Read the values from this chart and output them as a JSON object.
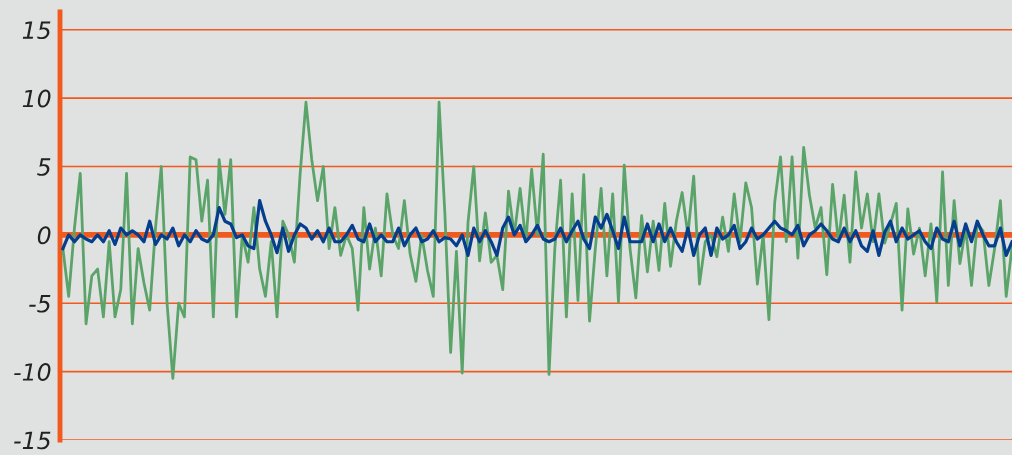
{
  "chart_data": {
    "type": "line",
    "categories": [
      null,
      null,
      null,
      null,
      null,
      null,
      null,
      null,
      null,
      null,
      null,
      null,
      null,
      null,
      null,
      null,
      null,
      null,
      null,
      null,
      null,
      null,
      null,
      null,
      null,
      null,
      null,
      null,
      null,
      null,
      null,
      null,
      null,
      null,
      null,
      null,
      null,
      null,
      null,
      null,
      null,
      null,
      null,
      null,
      null,
      null,
      null,
      null,
      null,
      null,
      null,
      null,
      null,
      null,
      null,
      null,
      null,
      null,
      null,
      null,
      null,
      null,
      null,
      null,
      null,
      null,
      null,
      null,
      null,
      null,
      null,
      null,
      null,
      null,
      null,
      null,
      null,
      null,
      null,
      null,
      null,
      null,
      null,
      null,
      null,
      null,
      null,
      null,
      null,
      null,
      null,
      null,
      null,
      null,
      null,
      null,
      null,
      null,
      null,
      null,
      null,
      null,
      null,
      null,
      null,
      null,
      null,
      null,
      null,
      null,
      null,
      null,
      null,
      null,
      null,
      null,
      null,
      null,
      null,
      null,
      null,
      null,
      null,
      null,
      null,
      null,
      null,
      null,
      null,
      null,
      null,
      null,
      null,
      null,
      null,
      null,
      null,
      null,
      null,
      null,
      null,
      null,
      null,
      null,
      null,
      null,
      null,
      null,
      null,
      null,
      null,
      null,
      null,
      null,
      null,
      null,
      null,
      null,
      null,
      null,
      null,
      null,
      null,
      null,
      null
    ],
    "series": [
      {
        "color": "#5aa469",
        "values": [
          -1,
          -4.5,
          0.5,
          4.5,
          -6.5,
          -3,
          -2.5,
          -6,
          -0.5,
          -6,
          -4,
          4.5,
          -6.5,
          -1,
          -3.5,
          -5.5,
          0.5,
          5,
          -5,
          -10.5,
          -5,
          -6,
          5.7,
          5.5,
          1,
          4,
          -6,
          5.5,
          1.5,
          5.5,
          -6,
          0,
          -2,
          2,
          -2.5,
          -4.5,
          -0.5,
          -6,
          1,
          0,
          -2,
          4.5,
          9.7,
          5.5,
          2.5,
          5,
          -1,
          2,
          -1.5,
          0,
          -1,
          -5.5,
          2,
          -2.5,
          0.5,
          -3,
          3,
          0,
          -1,
          2.5,
          -1.4,
          -3.4,
          0,
          -2.6,
          -4.5,
          9.7,
          1.6,
          -8.6,
          -1.2,
          -10.1,
          0.9,
          5,
          -1.9,
          1.6,
          -2,
          -1.5,
          -4,
          3.2,
          0,
          3.4,
          -0.5,
          4.8,
          0,
          5.9,
          -10.2,
          -1,
          4,
          -6,
          3,
          -4.8,
          4.4,
          -6.3,
          -1,
          3.4,
          -3,
          3,
          -4.9,
          5.1,
          -1,
          -4.6,
          1.4,
          -2.7,
          1,
          -2.6,
          2.3,
          -2.3,
          1,
          3.1,
          0,
          4.3,
          -3.6,
          -0.5,
          0,
          -1.6,
          1.3,
          -1.2,
          3,
          -0.5,
          3.8,
          2,
          -3.6,
          0,
          -6.2,
          2.4,
          5.7,
          -0.5,
          5.7,
          -1.7,
          6.4,
          2.9,
          0.5,
          2,
          -2.9,
          3.7,
          -0.5,
          2.9,
          -2,
          4.6,
          0.5,
          3,
          -0.5,
          3,
          -0.6,
          0.8,
          2.3,
          -5.5,
          1.9,
          -1.4,
          0.5,
          -3,
          0.8,
          -4.9,
          4.6,
          -3.7,
          2.5,
          -2.1,
          0.5,
          -3.7,
          0.8,
          0.3,
          -3.7,
          -1,
          2.5,
          -4.5,
          -0.9
        ]
      },
      {
        "color": "#053e8c",
        "values": [
          -1,
          0,
          -0.5,
          0,
          -0.3,
          -0.5,
          0,
          -0.5,
          0.3,
          -0.7,
          0.5,
          0,
          0.3,
          0,
          -0.5,
          1,
          -0.7,
          0,
          -0.3,
          0.5,
          -0.8,
          0,
          -0.5,
          0.3,
          -0.3,
          -0.5,
          0,
          2,
          1,
          0.8,
          -0.2,
          0,
          -0.8,
          -1,
          2.5,
          1,
          0,
          -1.3,
          0.5,
          -1.2,
          0,
          0.8,
          0.5,
          -0.3,
          0.3,
          -0.5,
          0.5,
          -0.5,
          -0.5,
          0,
          0.7,
          -0.3,
          -0.5,
          0.8,
          -0.5,
          0,
          -0.5,
          -0.5,
          0.5,
          -0.8,
          0,
          0.5,
          -0.5,
          -0.3,
          0.3,
          -0.5,
          -0.2,
          -0.3,
          -0.8,
          0,
          -1.5,
          0.5,
          -0.5,
          0.3,
          -0.5,
          -1.5,
          0.5,
          1.3,
          0,
          0.7,
          -0.5,
          0,
          0.7,
          -0.3,
          -0.5,
          -0.3,
          0.5,
          -0.5,
          0.3,
          1,
          -0.3,
          -1,
          1.3,
          0.5,
          1.5,
          0.3,
          -1,
          1.3,
          -0.5,
          -0.5,
          -0.5,
          0.8,
          -0.5,
          0.8,
          -0.5,
          0.5,
          -0.5,
          -1.2,
          0.5,
          -1.5,
          0,
          0.5,
          -1.5,
          0.5,
          -0.3,
          0,
          0.7,
          -1,
          -0.5,
          0.5,
          -0.3,
          0,
          0.5,
          1,
          0.5,
          0.3,
          0,
          0.7,
          -0.8,
          0,
          0.3,
          0.8,
          0.3,
          -0.3,
          -0.5,
          0.5,
          -0.5,
          0.3,
          -0.8,
          -1.2,
          0.3,
          -1.5,
          0.2,
          1,
          -0.5,
          0.5,
          -0.3,
          0,
          0.3,
          -0.5,
          -1,
          0.5,
          -0.3,
          -0.5,
          1,
          -0.8,
          0.8,
          -0.5,
          1,
          0,
          -0.8,
          -0.8,
          0.5,
          -1.5,
          -0.5
        ]
      }
    ],
    "ylim": [
      -15,
      16.3
    ],
    "yticks": [
      -15,
      -10,
      -5,
      0,
      5,
      10,
      15
    ],
    "grid": "y",
    "ref_lines": [
      {
        "axis": "y",
        "value": 0,
        "color": "#f05a1e"
      }
    ],
    "tick_labels": "y",
    "marker": "none",
    "line_style": "solid"
  }
}
